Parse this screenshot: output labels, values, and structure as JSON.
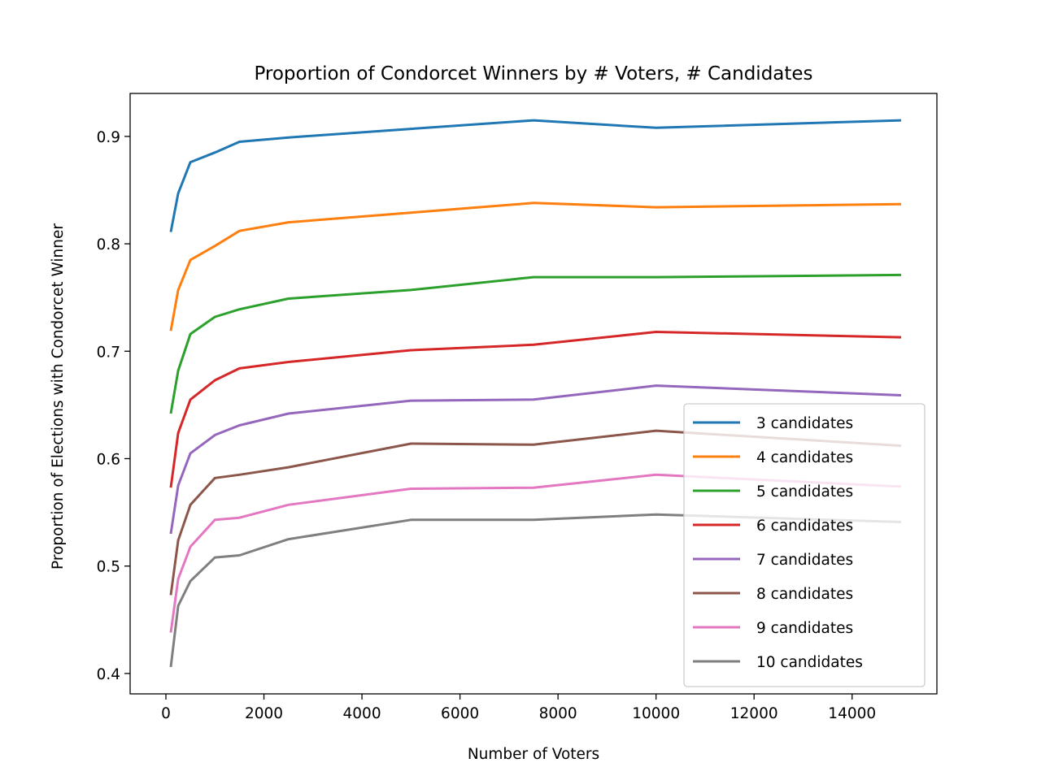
{
  "chart_data": {
    "type": "line",
    "title": "Proportion of Condorcet Winners by # Voters, # Candidates",
    "xlabel": "Number of Voters",
    "ylabel": "Proportion of Elections with Condorcet Winner",
    "xlim": [
      -730,
      15730
    ],
    "ylim": [
      0.381,
      0.94
    ],
    "xticks": [
      0,
      2000,
      4000,
      6000,
      8000,
      10000,
      12000,
      14000
    ],
    "yticks": [
      0.4,
      0.5,
      0.6,
      0.7,
      0.8,
      0.9
    ],
    "grid": false,
    "legend": "lower right",
    "x": [
      100,
      250,
      500,
      1000,
      1500,
      2500,
      5000,
      7500,
      10000,
      15000
    ],
    "series": [
      {
        "name": "3 candidates",
        "color": "#1f77b4",
        "values": [
          0.811,
          0.847,
          0.876,
          0.885,
          0.895,
          0.899,
          0.907,
          0.915,
          0.908,
          0.915
        ]
      },
      {
        "name": "4 candidates",
        "color": "#ff7f0e",
        "values": [
          0.719,
          0.757,
          0.785,
          0.798,
          0.812,
          0.82,
          0.829,
          0.838,
          0.834,
          0.837
        ]
      },
      {
        "name": "5 candidates",
        "color": "#2ca02c",
        "values": [
          0.642,
          0.682,
          0.716,
          0.732,
          0.739,
          0.749,
          0.757,
          0.769,
          0.769,
          0.771
        ]
      },
      {
        "name": "6 candidates",
        "color": "#d62728",
        "values": [
          0.573,
          0.624,
          0.655,
          0.673,
          0.684,
          0.69,
          0.701,
          0.706,
          0.718,
          0.713
        ]
      },
      {
        "name": "7 candidates",
        "color": "#9467bd",
        "values": [
          0.53,
          0.575,
          0.605,
          0.622,
          0.631,
          0.642,
          0.654,
          0.655,
          0.668,
          0.659
        ]
      },
      {
        "name": "8 candidates",
        "color": "#8c564b",
        "values": [
          0.473,
          0.524,
          0.557,
          0.582,
          0.585,
          0.592,
          0.614,
          0.613,
          0.626,
          0.612
        ]
      },
      {
        "name": "9 candidates",
        "color": "#e377c2",
        "values": [
          0.438,
          0.488,
          0.518,
          0.543,
          0.545,
          0.557,
          0.572,
          0.573,
          0.585,
          0.574
        ]
      },
      {
        "name": "10 candidates",
        "color": "#7f7f7f",
        "values": [
          0.406,
          0.463,
          0.486,
          0.508,
          0.51,
          0.525,
          0.543,
          0.543,
          0.548,
          0.541
        ]
      }
    ]
  }
}
